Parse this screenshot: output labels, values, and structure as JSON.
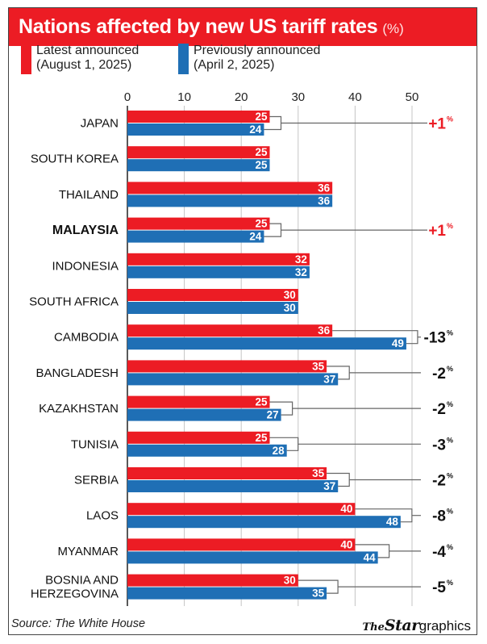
{
  "header": {
    "title": "Nations affected by new US tariff rates",
    "unit": "(%)"
  },
  "legend": {
    "latest_line1": "Latest announced",
    "latest_line2": "(August 1, 2025)",
    "previous_line1": "Previously announced",
    "previous_line2": "(April 2, 2025)"
  },
  "colors": {
    "latest": "#ec1c24",
    "previous": "#1f6fb5",
    "header_bg": "#ec1c24",
    "connector": "#666666"
  },
  "chart_data": {
    "type": "bar",
    "orientation": "horizontal",
    "title": "Nations affected by new US tariff rates (%)",
    "xlabel": "",
    "ylabel": "",
    "xlim": [
      0,
      50
    ],
    "xticks": [
      0,
      10,
      20,
      30,
      40,
      50
    ],
    "gridlines": true,
    "categories": [
      "JAPAN",
      "SOUTH KOREA",
      "THAILAND",
      "MALAYSIA",
      "INDONESIA",
      "SOUTH AFRICA",
      "CAMBODIA",
      "BANGLADESH",
      "KAZAKHSTAN",
      "TUNISIA",
      "SERBIA",
      "LAOS",
      "MYANMAR",
      "BOSNIA AND HERZEGOVINA"
    ],
    "category_lines": [
      [
        "JAPAN"
      ],
      [
        "SOUTH KOREA"
      ],
      [
        "THAILAND"
      ],
      [
        "MALAYSIA"
      ],
      [
        "INDONESIA"
      ],
      [
        "SOUTH AFRICA"
      ],
      [
        "CAMBODIA"
      ],
      [
        "BANGLADESH"
      ],
      [
        "KAZAKHSTAN"
      ],
      [
        "TUNISIA"
      ],
      [
        "SERBIA"
      ],
      [
        "LAOS"
      ],
      [
        "MYANMAR"
      ],
      [
        "BOSNIA AND",
        "HERZEGOVINA"
      ]
    ],
    "highlight_category": "MALAYSIA",
    "series": [
      {
        "name": "Latest announced (August 1, 2025)",
        "values": [
          25,
          25,
          36,
          25,
          32,
          30,
          36,
          35,
          25,
          25,
          35,
          40,
          40,
          30
        ]
      },
      {
        "name": "Previously announced (April 2, 2025)",
        "values": [
          24,
          25,
          36,
          24,
          32,
          30,
          49,
          37,
          27,
          28,
          37,
          48,
          44,
          35
        ]
      }
    ],
    "changes": [
      "+1",
      "",
      "",
      "+1",
      "",
      "",
      "-13",
      "-2",
      "-2",
      "-3",
      "-2",
      "-8",
      "-4",
      "-5"
    ],
    "change_unit": "%"
  },
  "footer": {
    "source": "Source: The White House",
    "brand_the": "The",
    "brand_star": "Star",
    "brand_graphics": "graphics"
  }
}
